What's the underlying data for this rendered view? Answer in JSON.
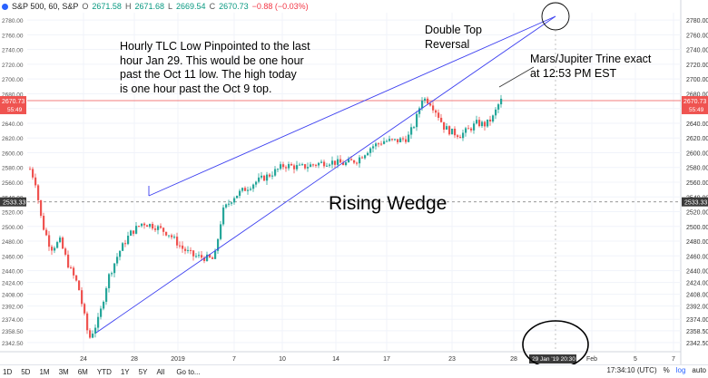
{
  "header": {
    "symbol": "S&P 500, 60, S&P",
    "o_label": "O",
    "o_value": "2671.58",
    "h_label": "H",
    "h_value": "2671.68",
    "l_label": "L",
    "l_value": "2669.54",
    "c_label": "C",
    "c_value": "2670.73",
    "change": "−0.88 (−0.03%)"
  },
  "annotations": {
    "tlc_note": [
      "Hourly TLC Low Pinpointed to the last",
      "hour Jan 29. This would be one hour",
      "past the Oct 11 low.  The high today",
      "is one hour past the Oct 9 top."
    ],
    "double_top": [
      "Double Top",
      "Reversal"
    ],
    "trine": [
      "Mars/Jupiter Trine exact",
      "at 12:53 PM EST"
    ],
    "wedge": "Rising Wedge"
  },
  "footer": {
    "ranges": [
      "1D",
      "5D",
      "1M",
      "3M",
      "6M",
      "YTD",
      "1Y",
      "5Y",
      "All"
    ],
    "goto": "Go to...",
    "time": "17:34:10 (UTC)",
    "percent": "%",
    "log": "log",
    "auto": "auto"
  },
  "colors": {
    "up": "#26a69a",
    "down": "#ef5350",
    "trend": "#3c3ff0",
    "last_price_badge": "#ef5350",
    "line_badge": "#3a3a3a"
  },
  "chart_data": {
    "type": "candlestick",
    "ylim": [
      2330,
      2790
    ],
    "y_ticks": [
      "2780.00",
      "2760.00",
      "2740.00",
      "2720.00",
      "2700.00",
      "2680.00",
      "2660.00",
      "2640.00",
      "2620.00",
      "2600.00",
      "2580.00",
      "2560.00",
      "2540.00",
      "2520.00",
      "2500.00",
      "2480.00",
      "2460.00",
      "2440.00",
      "2424.00",
      "2408.00",
      "2392.00",
      "2374.00",
      "2358.50",
      "2342.50"
    ],
    "x_ticks": [
      "24",
      "28",
      "2019",
      "7",
      "10",
      "14",
      "17",
      "23",
      "28",
      "Feb",
      "5",
      "7"
    ],
    "last_price": "2670.73",
    "last_price_time": "55:49",
    "horizontal_line": "2533.33",
    "cursor_time": "29 Jan '19  20:30",
    "key_prices": {
      "low_dec_26": 2347,
      "peak_jan_18": 2674,
      "low_jan_24": 2624,
      "last": 2670.73
    },
    "trendlines": [
      "upper wedge line",
      "lower wedge line"
    ]
  }
}
